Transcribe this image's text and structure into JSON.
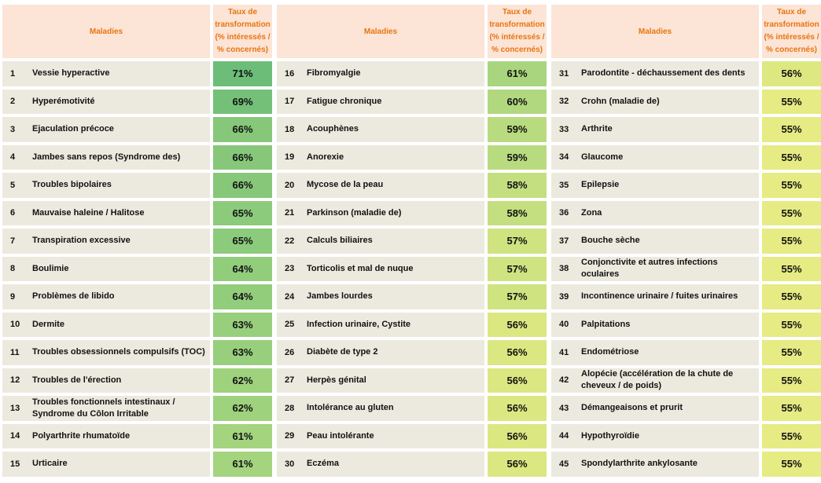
{
  "header": {
    "name_label": "Maladies",
    "rate_label": "Taux de\ntransformation\n(% intéressés /\n% concernés)"
  },
  "columns": [
    [
      {
        "num": "1",
        "label": "Vessie hyperactive",
        "rate": "71%",
        "color": "#6cbd78"
      },
      {
        "num": "2",
        "label": "Hyperémotivité",
        "rate": "69%",
        "color": "#75c078"
      },
      {
        "num": "3",
        "label": "Ejaculation précoce",
        "rate": "66%",
        "color": "#86c77a"
      },
      {
        "num": "4",
        "label": "Jambes sans repos (Syndrome des)",
        "rate": "66%",
        "color": "#86c77a"
      },
      {
        "num": "5",
        "label": "Troubles bipolaires",
        "rate": "66%",
        "color": "#86c77a"
      },
      {
        "num": "6",
        "label": "Mauvaise haleine / Halitose",
        "rate": "65%",
        "color": "#8ccb7b"
      },
      {
        "num": "7",
        "label": "Transpiration excessive",
        "rate": "65%",
        "color": "#8ccb7b"
      },
      {
        "num": "8",
        "label": "Boulimie",
        "rate": "64%",
        "color": "#92cd7c"
      },
      {
        "num": "9",
        "label": "Problèmes de libido",
        "rate": "64%",
        "color": "#92cd7c"
      },
      {
        "num": "10",
        "label": "Dermite",
        "rate": "63%",
        "color": "#98cf7c"
      },
      {
        "num": "11",
        "label": "Troubles obsessionnels compulsifs (TOC)",
        "rate": "63%",
        "color": "#98cf7c"
      },
      {
        "num": "12",
        "label": "Troubles de l'érection",
        "rate": "62%",
        "color": "#9ed27d"
      },
      {
        "num": "13",
        "label": "Troubles fonctionnels intestinaux / Syndrome du Côlon Irritable",
        "rate": "62%",
        "color": "#9ed27d"
      },
      {
        "num": "14",
        "label": "Polyarthrite rhumatoïde",
        "rate": "61%",
        "color": "#a4d47e"
      },
      {
        "num": "15",
        "label": "Urticaire",
        "rate": "61%",
        "color": "#a4d47e"
      }
    ],
    [
      {
        "num": "16",
        "label": "Fibromyalgie",
        "rate": "61%",
        "color": "#a9d57e"
      },
      {
        "num": "17",
        "label": "Fatigue chronique",
        "rate": "60%",
        "color": "#b1d87f"
      },
      {
        "num": "18",
        "label": "Acouphènes",
        "rate": "59%",
        "color": "#b9db7f"
      },
      {
        "num": "19",
        "label": "Anorexie",
        "rate": "59%",
        "color": "#b9db7f"
      },
      {
        "num": "20",
        "label": "Mycose de la peau",
        "rate": "58%",
        "color": "#c4df80"
      },
      {
        "num": "21",
        "label": "Parkinson (maladie de)",
        "rate": "58%",
        "color": "#c4df80"
      },
      {
        "num": "22",
        "label": "Calculs biliaires",
        "rate": "57%",
        "color": "#cfe381"
      },
      {
        "num": "23",
        "label": "Torticolis et mal de nuque",
        "rate": "57%",
        "color": "#cfe381"
      },
      {
        "num": "24",
        "label": "Jambes lourdes",
        "rate": "57%",
        "color": "#cfe381"
      },
      {
        "num": "25",
        "label": "Infection urinaire, Cystite",
        "rate": "56%",
        "color": "#dbe781"
      },
      {
        "num": "26",
        "label": "Diabète de type 2",
        "rate": "56%",
        "color": "#dbe781"
      },
      {
        "num": "27",
        "label": "Herpès génital",
        "rate": "56%",
        "color": "#dbe781"
      },
      {
        "num": "28",
        "label": "Intolérance au gluten",
        "rate": "56%",
        "color": "#dbe781"
      },
      {
        "num": "29",
        "label": "Peau intolérante",
        "rate": "56%",
        "color": "#dbe781"
      },
      {
        "num": "30",
        "label": "Eczéma",
        "rate": "56%",
        "color": "#dbe781"
      }
    ],
    [
      {
        "num": "31",
        "label": "Parodontite - déchaussement des dents",
        "rate": "56%",
        "color": "#dde881"
      },
      {
        "num": "32",
        "label": "Crohn (maladie de)",
        "rate": "55%",
        "color": "#e6eb83"
      },
      {
        "num": "33",
        "label": "Arthrite",
        "rate": "55%",
        "color": "#e6eb83"
      },
      {
        "num": "34",
        "label": "Glaucome",
        "rate": "55%",
        "color": "#e6eb83"
      },
      {
        "num": "35",
        "label": "Epilepsie",
        "rate": "55%",
        "color": "#e6eb83"
      },
      {
        "num": "36",
        "label": "Zona",
        "rate": "55%",
        "color": "#e6eb83"
      },
      {
        "num": "37",
        "label": "Bouche sèche",
        "rate": "55%",
        "color": "#e6eb83"
      },
      {
        "num": "38",
        "label": "Conjonctivite et autres infections oculaires",
        "rate": "55%",
        "color": "#e6eb83"
      },
      {
        "num": "39",
        "label": "Incontinence urinaire / fuites urinaires",
        "rate": "55%",
        "color": "#e6eb83"
      },
      {
        "num": "40",
        "label": "Palpitations",
        "rate": "55%",
        "color": "#e6eb83"
      },
      {
        "num": "41",
        "label": "Endométriose",
        "rate": "55%",
        "color": "#e6eb83"
      },
      {
        "num": "42",
        "label": "Alopécie (accélération de la chute de cheveux / de poids)",
        "rate": "55%",
        "color": "#e6eb83"
      },
      {
        "num": "43",
        "label": "Démangeaisons et prurit",
        "rate": "55%",
        "color": "#e6eb83"
      },
      {
        "num": "44",
        "label": "Hypothyroïdie",
        "rate": "55%",
        "color": "#e6eb83"
      },
      {
        "num": "45",
        "label": "Spondylarthrite ankylosante",
        "rate": "55%",
        "color": "#e6eb83"
      }
    ]
  ]
}
